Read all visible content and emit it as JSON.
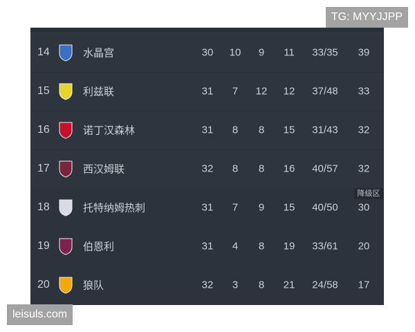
{
  "watermarks": {
    "top_right": "TG: MYYJJPP",
    "bottom_left": "leisuls.com"
  },
  "relegation_label": "降级区",
  "rows": [
    {
      "rank": "14",
      "team": "水晶宫",
      "logo": "crystal-palace-crest",
      "played": "30",
      "won": "10",
      "drawn": "9",
      "lost": "11",
      "goals": "33/35",
      "points": "39",
      "color": "#3a6fc4"
    },
    {
      "rank": "15",
      "team": "利兹联",
      "logo": "leeds-crest",
      "played": "31",
      "won": "7",
      "drawn": "12",
      "lost": "12",
      "goals": "37/48",
      "points": "33",
      "color": "#e8d42a"
    },
    {
      "rank": "16",
      "team": "诺丁汉森林",
      "logo": "nottingham-forest-crest",
      "played": "31",
      "won": "8",
      "drawn": "8",
      "lost": "15",
      "goals": "31/43",
      "points": "32",
      "color": "#c8102e"
    },
    {
      "rank": "17",
      "team": "西汉姆联",
      "logo": "west-ham-crest",
      "played": "32",
      "won": "8",
      "drawn": "8",
      "lost": "16",
      "goals": "40/57",
      "points": "32",
      "color": "#7a263a"
    },
    {
      "rank": "18",
      "team": "托特纳姆热刺",
      "logo": "tottenham-crest",
      "played": "31",
      "won": "7",
      "drawn": "9",
      "lost": "15",
      "goals": "40/50",
      "points": "30",
      "color": "#d8dbe6"
    },
    {
      "rank": "19",
      "team": "伯恩利",
      "logo": "burnley-crest",
      "played": "31",
      "won": "4",
      "drawn": "8",
      "lost": "19",
      "goals": "33/61",
      "points": "20",
      "color": "#7c2250"
    },
    {
      "rank": "20",
      "team": "狼队",
      "logo": "wolves-crest",
      "played": "32",
      "won": "3",
      "drawn": "8",
      "lost": "21",
      "goals": "24/58",
      "points": "17",
      "color": "#f2a900"
    }
  ]
}
